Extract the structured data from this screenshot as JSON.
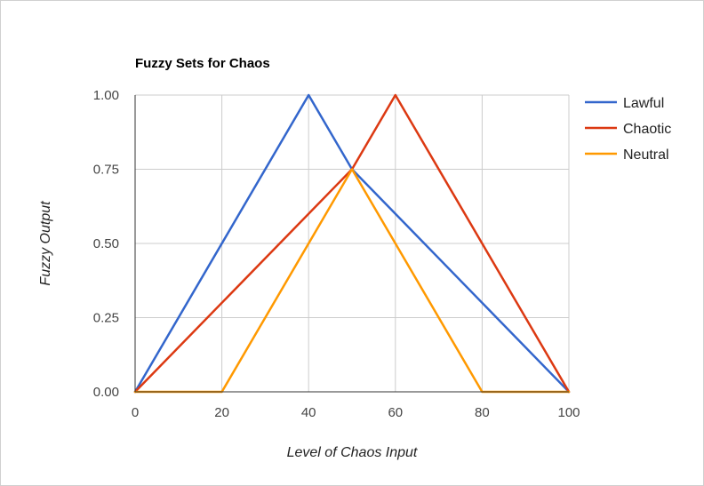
{
  "chart_data": {
    "type": "line",
    "title": "Fuzzy Sets for Chaos",
    "xlabel": "Level of Chaos Input",
    "ylabel": "Fuzzy Output",
    "xlim": [
      0,
      100
    ],
    "ylim": [
      0,
      1
    ],
    "x_ticks": [
      "0",
      "20",
      "40",
      "60",
      "80",
      "100"
    ],
    "y_ticks": [
      "0.00",
      "0.25",
      "0.50",
      "0.75",
      "1.00"
    ],
    "grid": true,
    "legend_position": "right",
    "series": [
      {
        "name": "Lawful",
        "color": "#3366cc",
        "x": [
          0,
          40,
          50,
          100
        ],
        "y": [
          0,
          1,
          0.75,
          0
        ]
      },
      {
        "name": "Chaotic",
        "color": "#dc3912",
        "x": [
          0,
          50,
          60,
          100
        ],
        "y": [
          0,
          0.75,
          1,
          0
        ]
      },
      {
        "name": "Neutral",
        "color": "#ff9900",
        "x": [
          0,
          20,
          50,
          80,
          100
        ],
        "y": [
          0,
          0,
          0.75,
          0,
          0
        ]
      }
    ]
  }
}
